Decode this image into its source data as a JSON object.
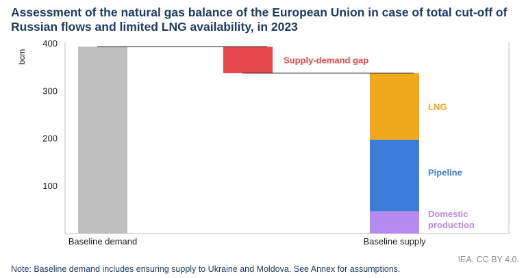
{
  "title": "Assessment of the natural gas balance of the European Union in case of total cut-off of Russian flows and limited LNG availability, in 2023",
  "note": "Note: Baseline demand includes ensuring supply to Ukraine and Moldova. See Annex for assumptions.",
  "credit": "IEA. CC BY 4.0.",
  "colors": {
    "demand": "#bfbfbf",
    "gap": "#e5484d",
    "lng": "#f2a81d",
    "pipeline": "#3b7dd8",
    "domestic": "#b78af0",
    "axis_text": "#1a1a1a",
    "connector": "#1a1a1a"
  },
  "chart_data": {
    "type": "bar",
    "subtype": "waterfall",
    "ylabel": "bcm",
    "ylim": [
      0,
      400
    ],
    "yticks": [
      100,
      200,
      300,
      400
    ],
    "grid": false,
    "categories": [
      "Baseline demand",
      "",
      "Baseline supply"
    ],
    "bars": [
      {
        "category": "Baseline demand",
        "segments": [
          {
            "component": "demand",
            "bottom": 0,
            "top": 394
          }
        ]
      },
      {
        "category": "",
        "segments": [
          {
            "component": "gap",
            "bottom": 338,
            "top": 394
          }
        ]
      },
      {
        "category": "Baseline supply",
        "segments": [
          {
            "component": "domestic",
            "bottom": 0,
            "top": 47
          },
          {
            "component": "pipeline",
            "bottom": 47,
            "top": 198
          },
          {
            "component": "lng",
            "bottom": 198,
            "top": 338
          }
        ]
      }
    ],
    "connectors": [
      394,
      338
    ],
    "annotations": [
      {
        "component": "gap",
        "text": "Supply-demand gap",
        "y": 366
      },
      {
        "component": "lng",
        "text": "LNG",
        "y": 268
      },
      {
        "component": "pipeline",
        "text": "Pipeline",
        "y": 129
      },
      {
        "component": "domestic",
        "text": "Domestic production",
        "lines": [
          "Domestic",
          "production"
        ],
        "y": 30
      }
    ]
  }
}
